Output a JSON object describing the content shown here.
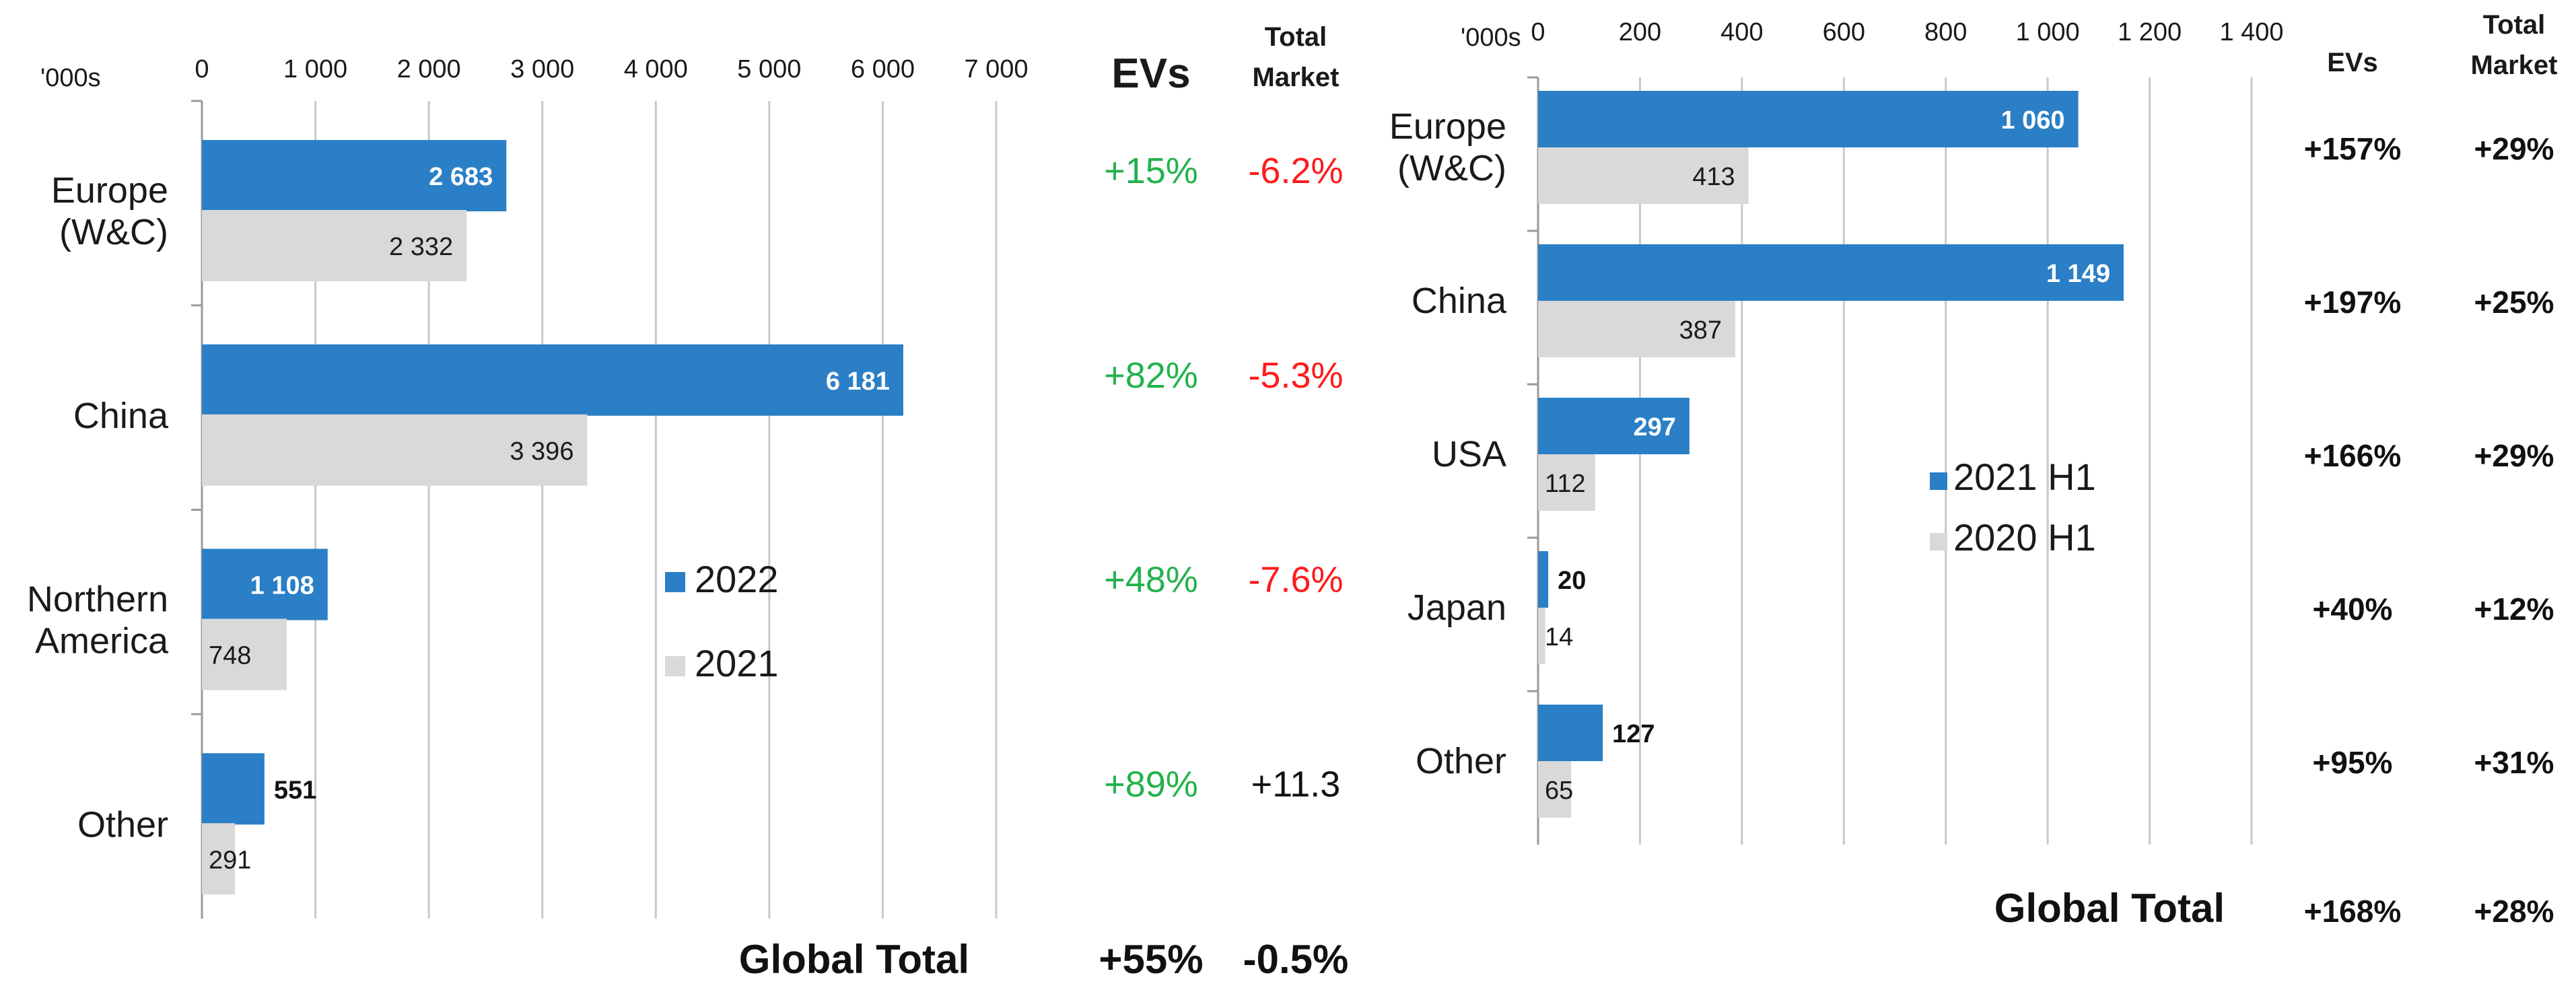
{
  "colors": {
    "current_bar": "#2a7fc6",
    "previous_bar": "#d9d9d9",
    "gridline": "#c8c8c8",
    "green": "#22b24c",
    "red": "#ff1a1a",
    "text": "#1a1a1a"
  },
  "chart_data": [
    {
      "type": "bar",
      "orientation": "horizontal",
      "unit_label": "'000s",
      "xlim": [
        0,
        7000
      ],
      "ticks": [
        "0",
        "1 000",
        "2 000",
        "3 000",
        "4 000",
        "5 000",
        "6 000",
        "7 000"
      ],
      "tick_values": [
        0,
        1000,
        2000,
        3000,
        4000,
        5000,
        6000,
        7000
      ],
      "categories": [
        [
          "Europe",
          "(W&C)"
        ],
        [
          "China"
        ],
        [
          "Northern",
          "America"
        ],
        [
          "Other"
        ]
      ],
      "series": [
        {
          "name": "2022",
          "values": [
            2683,
            6181,
            1108,
            551
          ],
          "labels": [
            "2 683",
            "6 181",
            "1 108",
            "551"
          ]
        },
        {
          "name": "2021",
          "values": [
            2332,
            3396,
            748,
            291
          ],
          "labels": [
            "2 332",
            "3 396",
            "748",
            "291"
          ]
        }
      ],
      "legend": [
        "2022",
        "2021"
      ],
      "legend_position": "center-right",
      "table": {
        "evs_header": "EVs",
        "market_header": [
          "Total",
          "Market"
        ],
        "evs_growth": [
          "+15%",
          "+82%",
          "+48%",
          "+89%"
        ],
        "market_growth": [
          "-6.2%",
          "-5.3%",
          "-7.6%",
          "+11.3"
        ],
        "market_growth_negative": [
          true,
          true,
          true,
          false
        ],
        "global_label": "Global Total",
        "global_evs": "+55%",
        "global_market": "-0.5%"
      }
    },
    {
      "type": "bar",
      "orientation": "horizontal",
      "unit_label": "'000s",
      "xlim": [
        0,
        1400
      ],
      "ticks": [
        "0",
        "200",
        "400",
        "600",
        "800",
        "1 000",
        "1 200",
        "1 400"
      ],
      "tick_values": [
        0,
        200,
        400,
        600,
        800,
        1000,
        1200,
        1400
      ],
      "categories": [
        [
          "Europe",
          "(W&C)"
        ],
        [
          "China"
        ],
        [
          "USA"
        ],
        [
          "Japan"
        ],
        [
          "Other"
        ]
      ],
      "series": [
        {
          "name": "2021 H1",
          "values": [
            1060,
            1149,
            297,
            20,
            127
          ],
          "labels": [
            "1 060",
            "1 149",
            "297",
            "20",
            "127"
          ]
        },
        {
          "name": "2020 H1",
          "values": [
            413,
            387,
            112,
            14,
            65
          ],
          "labels": [
            "413",
            "387",
            "112",
            "14",
            "65"
          ]
        }
      ],
      "legend": [
        "2021 H1",
        "2020 H1"
      ],
      "legend_position": "center-right",
      "table": {
        "evs_header": "EVs",
        "market_header": [
          "Total",
          "Market"
        ],
        "evs_growth": [
          "+157%",
          "+197%",
          "+166%",
          "+40%",
          "+95%"
        ],
        "market_growth": [
          "+29%",
          "+25%",
          "+29%",
          "+12%",
          "+31%"
        ],
        "global_label": "Global Total",
        "global_evs": "+168%",
        "global_market": "+28%"
      }
    }
  ]
}
